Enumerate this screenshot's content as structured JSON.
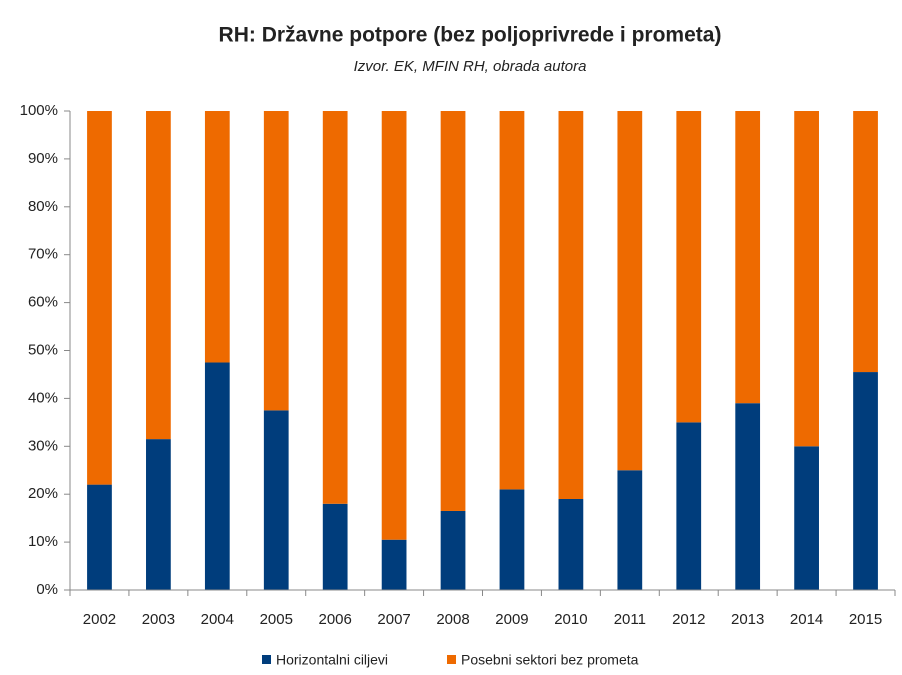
{
  "chart_data": {
    "type": "stacked_bar",
    "title": "RH: Državne potpore (bez poljoprivrede i prometa)",
    "subtitle": "Izvor. EK, MFIN RH, obrada autora",
    "categories": [
      "2002",
      "2003",
      "2004",
      "2005",
      "2006",
      "2007",
      "2008",
      "2009",
      "2010",
      "2011",
      "2012",
      "2013",
      "2014",
      "2015"
    ],
    "series": [
      {
        "name": "Horizontalni ciljevi",
        "color": "#003d7c",
        "values": [
          22,
          31.5,
          47.5,
          37.5,
          18,
          10.5,
          16.5,
          21,
          19,
          25,
          35,
          39,
          30,
          45.5
        ]
      },
      {
        "name": "Posebni sektori bez prometa",
        "color": "#ee6a00",
        "values": [
          78,
          68.5,
          52.5,
          62.5,
          82,
          89.5,
          83.5,
          79,
          81,
          75,
          65,
          61,
          70,
          54.5
        ]
      }
    ],
    "ylim": [
      0,
      100
    ],
    "yticks": [
      {
        "value": 0,
        "label": "0%"
      },
      {
        "value": 10,
        "label": "10%"
      },
      {
        "value": 20,
        "label": "20%"
      },
      {
        "value": 30,
        "label": "30%"
      },
      {
        "value": 40,
        "label": "40%"
      },
      {
        "value": 50,
        "label": "50%"
      },
      {
        "value": 60,
        "label": "60%"
      },
      {
        "value": 70,
        "label": "70%"
      },
      {
        "value": 80,
        "label": "80%"
      },
      {
        "value": 90,
        "label": "90%"
      },
      {
        "value": 100,
        "label": "100%"
      }
    ],
    "grid": false,
    "legend": "bottom"
  }
}
